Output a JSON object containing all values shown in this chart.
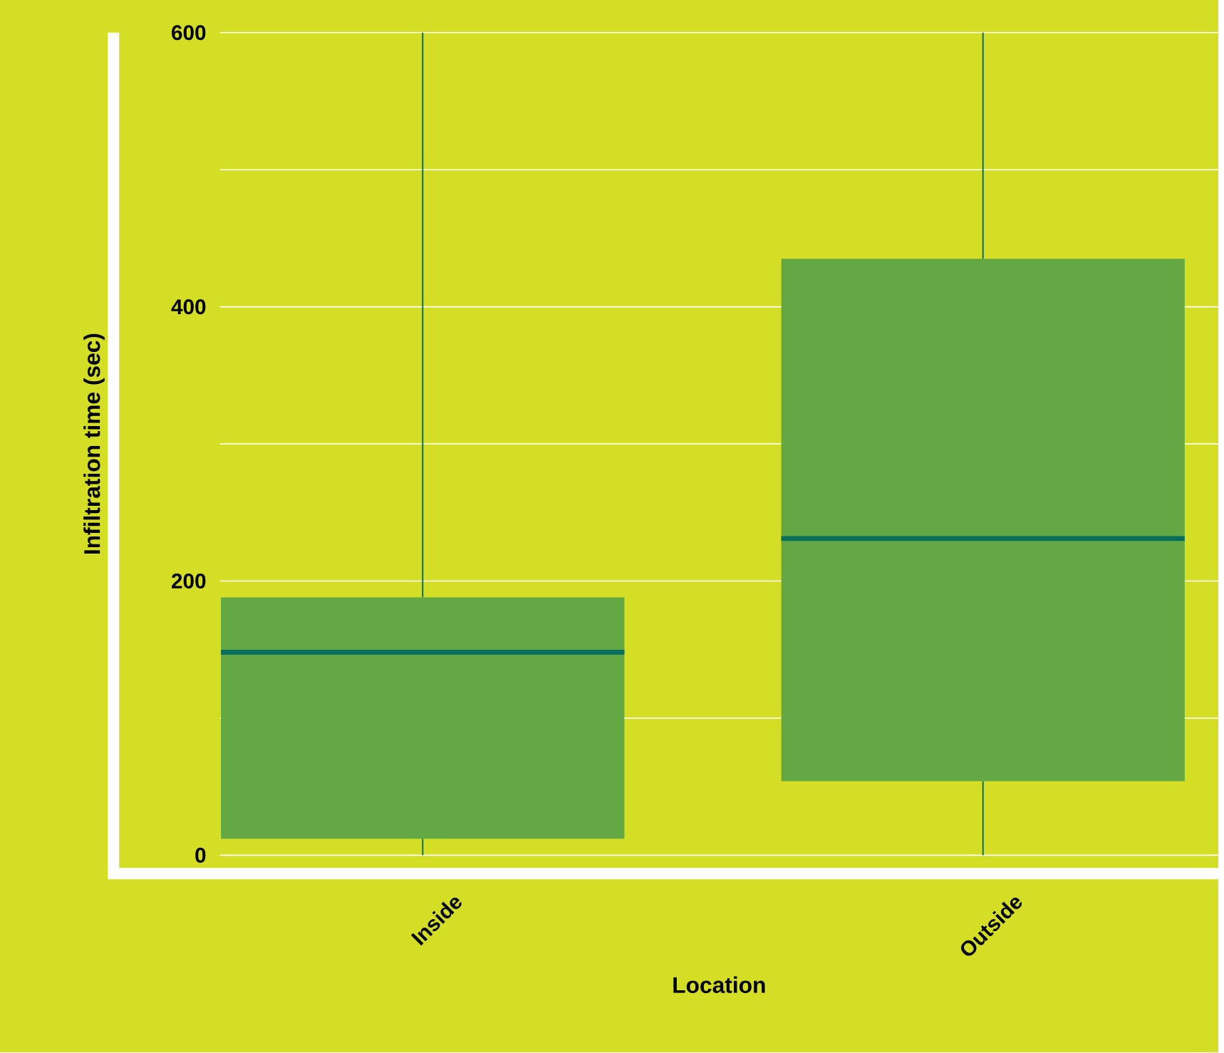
{
  "chart_data": {
    "type": "box",
    "xlabel": "Location",
    "ylabel": "Infiltration time (sec)",
    "categories": [
      "Inside",
      "Outside"
    ],
    "boxes": [
      {
        "low": 0,
        "q1": 12,
        "median": 148,
        "q3": 188,
        "high": 600
      },
      {
        "low": 0,
        "q1": 54,
        "median": 231,
        "q3": 435,
        "high": 600
      }
    ],
    "color": "#63a843",
    "ylim": [
      0,
      600
    ],
    "yticks": [
      0,
      {
        "value": 100,
        "label": null
      },
      200,
      {
        "value": 300,
        "label": null
      },
      400,
      {
        "value": 500,
        "label": null
      },
      600
    ],
    "grid": "y"
  }
}
